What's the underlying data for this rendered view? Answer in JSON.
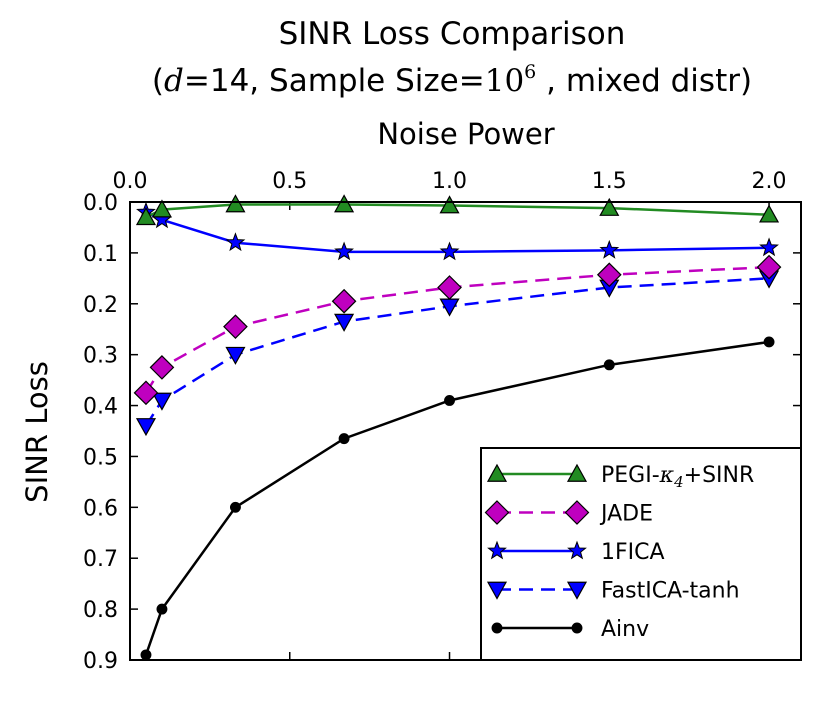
{
  "chart_data": {
    "type": "line",
    "title": {
      "line1": "SINR Loss Comparison",
      "line2_open": "(",
      "line2_d": "d",
      "line2_mid": "=14, Sample Size=",
      "line2_base": "10",
      "line2_exp": "6",
      "line2_end": " , mixed distr)"
    },
    "xlabel": "Noise Power",
    "ylabel": "SINR Loss",
    "xlim": [
      0.0,
      2.1
    ],
    "ylim": [
      0.0,
      0.9
    ],
    "y_inverted": true,
    "x_axis_position": "top",
    "x_ticks": [
      0.0,
      0.5,
      1.0,
      1.5,
      2.0
    ],
    "x_tick_labels": [
      "0.0",
      "0.5",
      "1.0",
      "1.5",
      "2.0"
    ],
    "y_ticks": [
      0.0,
      0.1,
      0.2,
      0.3,
      0.4,
      0.5,
      0.6,
      0.7,
      0.8,
      0.9
    ],
    "y_tick_labels": [
      "0.0",
      "0.1",
      "0.2",
      "0.3",
      "0.4",
      "0.5",
      "0.6",
      "0.7",
      "0.8",
      "0.9"
    ],
    "x": [
      0.05,
      0.1,
      0.33,
      0.67,
      1.0,
      1.5,
      2.0
    ],
    "legend_position": "bottom-right",
    "series": [
      {
        "name": "PEGI-κ4+SINR",
        "legend_prefix": "PEGI-",
        "legend_kappa": "κ",
        "legend_sub": "4",
        "legend_suffix": "+SINR",
        "values": [
          0.03,
          0.015,
          0.005,
          0.005,
          0.007,
          0.012,
          0.025
        ],
        "color": "#228B22",
        "marker": "triangle-up",
        "dashed": false
      },
      {
        "name": "JADE",
        "values": [
          0.375,
          0.325,
          0.245,
          0.195,
          0.168,
          0.143,
          0.128
        ],
        "color": "#BF00BF",
        "marker": "diamond",
        "dashed": true
      },
      {
        "name": "1FICA",
        "values": [
          0.02,
          0.035,
          0.08,
          0.098,
          0.098,
          0.095,
          0.09
        ],
        "color": "#0000FF",
        "marker": "star",
        "dashed": false
      },
      {
        "name": "FastICA-tanh",
        "values": [
          0.44,
          0.39,
          0.3,
          0.235,
          0.205,
          0.168,
          0.15
        ],
        "color": "#0000FF",
        "marker": "triangle-down",
        "dashed": true
      },
      {
        "name": "Ainv",
        "values": [
          0.89,
          0.8,
          0.6,
          0.465,
          0.39,
          0.32,
          0.275
        ],
        "color": "#000000",
        "marker": "dot",
        "dashed": false
      }
    ]
  }
}
